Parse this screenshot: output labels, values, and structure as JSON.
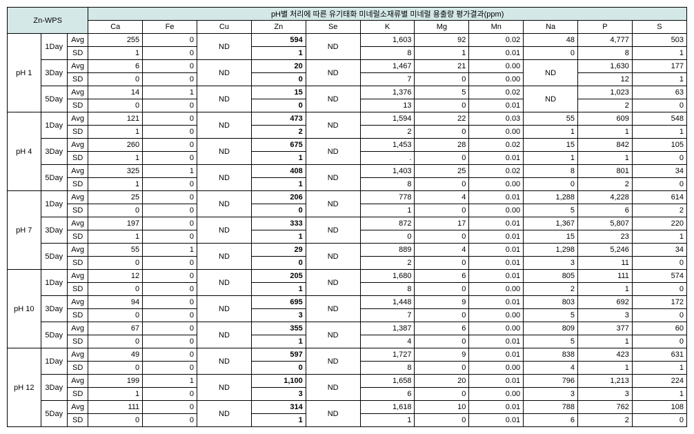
{
  "title_main": "Zn-WPS",
  "title_header": "pH별 처리에 따른 유기태화 미네럴소재류별  미네럴 용출량 평가결과(ppm)",
  "columns": [
    "Ca",
    "Fe",
    "Cu",
    "Zn",
    "Se",
    "K",
    "Mg",
    "Mn",
    "Na",
    "P",
    "S"
  ],
  "groups": [
    {
      "ph": "pH 1",
      "days": [
        {
          "day": "1Day",
          "avg": [
            "255",
            "0",
            "ND",
            "594",
            "ND",
            "1,603",
            "92",
            "0.02",
            "48",
            "4,777",
            "503"
          ],
          "sd": [
            "1",
            "0",
            "",
            "1",
            "",
            "8",
            "1",
            "0.01",
            "0",
            "8",
            "1"
          ]
        },
        {
          "day": "3Day",
          "avg": [
            "6",
            "0",
            "ND",
            "20",
            "ND",
            "1,467",
            "21",
            "0.00",
            "ND",
            "1,630",
            "177"
          ],
          "sd": [
            "0",
            "0",
            "",
            "0",
            "",
            "7",
            "0",
            "0.00",
            "",
            "12",
            "1"
          ]
        },
        {
          "day": "5Day",
          "avg": [
            "14",
            "1",
            "ND",
            "15",
            "ND",
            "1,376",
            "5",
            "0.02",
            "ND",
            "1,023",
            "63"
          ],
          "sd": [
            "0",
            "0",
            "",
            "0",
            "",
            "13",
            "0",
            "0.01",
            "",
            "2",
            "0"
          ]
        }
      ]
    },
    {
      "ph": "pH 4",
      "days": [
        {
          "day": "1Day",
          "avg": [
            "121",
            "0",
            "ND",
            "473",
            "ND",
            "1,594",
            "22",
            "0.03",
            "55",
            "609",
            "548"
          ],
          "sd": [
            "1",
            "0",
            "",
            "2",
            "",
            "2",
            "0",
            "0.00",
            "1",
            "1",
            "1"
          ]
        },
        {
          "day": "3Day",
          "avg": [
            "260",
            "0",
            "ND",
            "675",
            "ND",
            "1,453",
            "28",
            "0.02",
            "15",
            "842",
            "105"
          ],
          "sd": [
            "1",
            "0",
            "",
            "1",
            "",
            ".",
            "0",
            "0.01",
            "1",
            "1",
            "0"
          ]
        },
        {
          "day": "5Day",
          "avg": [
            "325",
            "1",
            "ND",
            "408",
            "ND",
            "1,403",
            "25",
            "0.02",
            "8",
            "801",
            "34"
          ],
          "sd": [
            "1",
            "0",
            "",
            "1",
            "",
            "8",
            "0",
            "0.00",
            "0",
            "2",
            "0"
          ]
        }
      ]
    },
    {
      "ph": "pH 7",
      "days": [
        {
          "day": "1Day",
          "avg": [
            "25",
            "0",
            "ND",
            "206",
            "ND",
            "778",
            "4",
            "0.01",
            "1,288",
            "4,228",
            "614"
          ],
          "sd": [
            "0",
            "0",
            "",
            "0",
            "",
            "1",
            "0",
            "0.00",
            "5",
            "6",
            "2"
          ]
        },
        {
          "day": "3Day",
          "avg": [
            "197",
            "0",
            "ND",
            "333",
            "ND",
            "872",
            "17",
            "0.01",
            "1,367",
            "5,807",
            "220"
          ],
          "sd": [
            "1",
            "0",
            "",
            "1",
            "",
            "0",
            "0",
            "0.01",
            "15",
            "23",
            "1"
          ]
        },
        {
          "day": "5Day",
          "avg": [
            "55",
            "1",
            "ND",
            "29",
            "ND",
            "889",
            "4",
            "0.01",
            "1,298",
            "5,246",
            "34"
          ],
          "sd": [
            "0",
            "0",
            "",
            "0",
            "",
            "2",
            "0",
            "0.01",
            "3",
            "11",
            "0"
          ]
        }
      ]
    },
    {
      "ph": "pH 10",
      "days": [
        {
          "day": "1Day",
          "avg": [
            "12",
            "0",
            "ND",
            "205",
            "ND",
            "1,680",
            "6",
            "0.01",
            "805",
            "111",
            "574"
          ],
          "sd": [
            "0",
            "0",
            "",
            "1",
            "",
            "8",
            "0",
            "0.00",
            "2",
            "1",
            "0"
          ]
        },
        {
          "day": "3Day",
          "avg": [
            "94",
            "0",
            "ND",
            "695",
            "ND",
            "1,448",
            "9",
            "0.01",
            "803",
            "692",
            "172"
          ],
          "sd": [
            "0",
            "0",
            "",
            "3",
            "",
            "7",
            "0",
            "0.00",
            "5",
            "3",
            "0"
          ]
        },
        {
          "day": "5Day",
          "avg": [
            "67",
            "0",
            "ND",
            "355",
            "ND",
            "1,387",
            "6",
            "0.00",
            "809",
            "377",
            "60"
          ],
          "sd": [
            "0",
            "0",
            "",
            "1",
            "",
            "4",
            "0",
            "0.01",
            "5",
            "1",
            "0"
          ]
        }
      ]
    },
    {
      "ph": "pH 12",
      "days": [
        {
          "day": "1Day",
          "avg": [
            "49",
            "0",
            "ND",
            "597",
            "ND",
            "1,727",
            "9",
            "0.01",
            "838",
            "423",
            "631"
          ],
          "sd": [
            "0",
            "0",
            "",
            "0",
            "",
            "8",
            "0",
            "0.00",
            "4",
            "1",
            "1"
          ]
        },
        {
          "day": "3Day",
          "avg": [
            "199",
            "1",
            "ND",
            "1,100",
            "ND",
            "1,658",
            "20",
            "0.01",
            "796",
            "1,213",
            "224"
          ],
          "sd": [
            "1",
            "0",
            "",
            "3",
            "",
            "6",
            "0",
            "0.00",
            "3",
            "3",
            "1"
          ]
        },
        {
          "day": "5Day",
          "avg": [
            "111",
            "0",
            "ND",
            "314",
            "ND",
            "1,618",
            "10",
            "0.01",
            "788",
            "762",
            "108"
          ],
          "sd": [
            "0",
            "0",
            "",
            "1",
            "",
            "1",
            "0",
            "0.01",
            "6",
            "2",
            "0"
          ]
        }
      ]
    }
  ],
  "stat_labels": {
    "avg": "Avg",
    "sd": "SD"
  }
}
